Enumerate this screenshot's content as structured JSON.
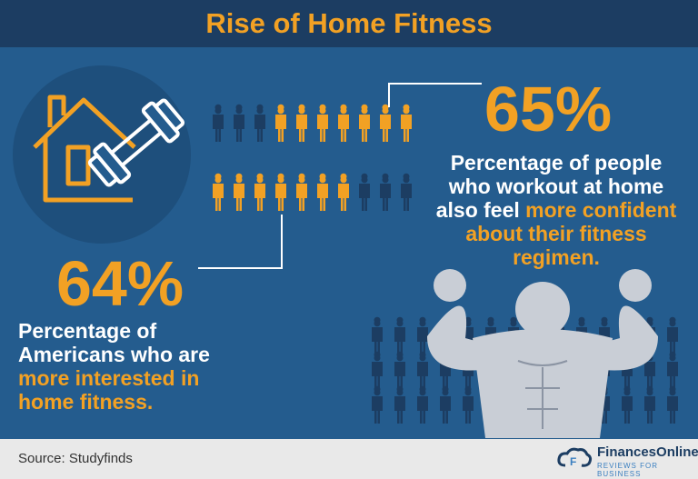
{
  "title": "Rise of Home Fitness",
  "stats": [
    {
      "value": "65%",
      "text": "Percentage of people who workout at home also feel",
      "highlight": "more confident about their fitness regimen."
    },
    {
      "value": "64%",
      "text": "Percentage of Americans who are",
      "highlight": "more interested in home fitness."
    }
  ],
  "footer": {
    "source": "Source: Studyfinds",
    "brand": "FinancesOnline",
    "tagline": "REVIEWS FOR BUSINESS"
  }
}
